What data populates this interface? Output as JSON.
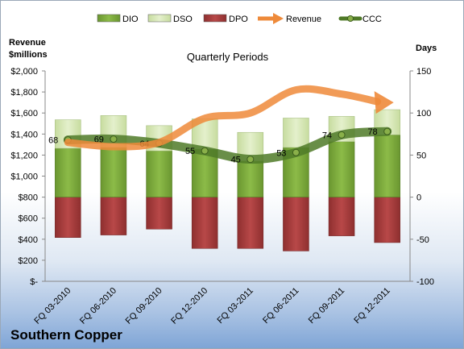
{
  "chart_data": {
    "type": "bar",
    "company": "Southern Copper",
    "title": "Quarterly Periods",
    "left_axis_title": [
      "Revenue",
      "$millions"
    ],
    "right_axis_title": "Days",
    "categories": [
      "FQ 03-2010",
      "FQ 06-2010",
      "FQ 09-2010",
      "FQ 12-2010",
      "FQ 03-2011",
      "FQ 06-2011",
      "FQ 09-2011",
      "FQ 12-2011"
    ],
    "left_ticks": [
      "$-",
      "$200",
      "$400",
      "$600",
      "$800",
      "$1,000",
      "$1,200",
      "$1,400",
      "$1,600",
      "$1,800",
      "$2,000"
    ],
    "right_ticks": [
      "-100",
      "-50",
      "0",
      "50",
      "100",
      "150"
    ],
    "left_ylim": [
      0,
      2000
    ],
    "right_ylim": [
      -100,
      150
    ],
    "legend": [
      "DIO",
      "DSO",
      "DPO",
      "Revenue",
      "CCC"
    ],
    "colors": {
      "DIO": "#7aa53a",
      "DSO": "#d4e6b0",
      "DPO": "#a33a3a",
      "Revenue": "#ee8a3a",
      "CCC": "#4f7a28"
    },
    "series": [
      {
        "name": "DIO",
        "axis": "right",
        "values": [
          58,
          59,
          55,
          57,
          43,
          59,
          66,
          74
        ]
      },
      {
        "name": "DSO",
        "axis": "right",
        "values": [
          34,
          38,
          30,
          36,
          34,
          35,
          30,
          30
        ]
      },
      {
        "name": "DPO",
        "axis": "right",
        "values": [
          -48,
          -45,
          -38,
          -61,
          -61,
          -64,
          -46,
          -54
        ]
      },
      {
        "name": "Revenue",
        "axis": "left",
        "values": [
          1320,
          1280,
          1320,
          1550,
          1600,
          1820,
          1780,
          1700
        ]
      },
      {
        "name": "CCC",
        "axis": "right",
        "values": [
          68,
          69,
          64,
          55,
          45,
          53,
          74,
          78
        ]
      }
    ],
    "ccc_labels": [
      "68",
      "69",
      "64",
      "55",
      "45",
      "53",
      "74",
      "78"
    ]
  }
}
